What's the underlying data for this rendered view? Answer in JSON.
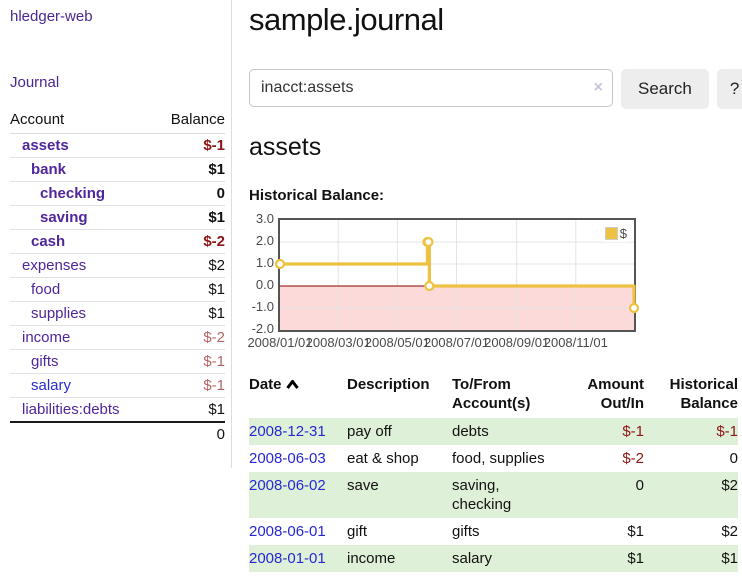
{
  "app_title": "hledger-web",
  "sidebar": {
    "journal_link": "Journal",
    "account_header": "Account",
    "balance_header": "Balance",
    "accounts": [
      {
        "name": "assets",
        "balance": "$-1",
        "depth": 1,
        "bold": true,
        "neg": "neg-strong"
      },
      {
        "name": "bank",
        "balance": "$1",
        "depth": 2,
        "bold": true
      },
      {
        "name": "checking",
        "balance": "0",
        "depth": 3,
        "bold": true
      },
      {
        "name": "saving",
        "balance": "$1",
        "depth": 3,
        "bold": true
      },
      {
        "name": "cash",
        "balance": "$-2",
        "depth": 2,
        "bold": true,
        "neg": "neg-strong"
      },
      {
        "name": "expenses",
        "balance": "$2",
        "depth": 1
      },
      {
        "name": "food",
        "balance": "$1",
        "depth": 2
      },
      {
        "name": "supplies",
        "balance": "$1",
        "depth": 2
      },
      {
        "name": "income",
        "balance": "$-2",
        "depth": 1,
        "neg": "neg-soft"
      },
      {
        "name": "gifts",
        "balance": "$-1",
        "depth": 2,
        "neg": "neg-soft"
      },
      {
        "name": "salary",
        "balance": "$-1",
        "depth": 2,
        "neg": "neg-soft",
        "blue": true
      },
      {
        "name": "liabilities:debts",
        "balance": "$1",
        "depth": 1
      }
    ],
    "total": "0"
  },
  "main": {
    "title": "sample.journal",
    "search": {
      "value": "inacct:assets",
      "clear_icon": "×",
      "search_button": "Search",
      "help_button": "?"
    },
    "account_title": "assets",
    "chart_label": "Historical Balance:"
  },
  "register": {
    "columns": [
      "Date",
      "Description",
      "To/From Account(s)",
      "Amount Out/In",
      "Historical Balance"
    ],
    "sorted_by": "Date ascending",
    "rows": [
      {
        "date": "2008-12-31",
        "description": "pay off",
        "accounts": "debts",
        "amount": "$-1",
        "amount_negative": true,
        "balance": "$-1",
        "balance_negative": true,
        "shaded": true
      },
      {
        "date": "2008-06-03",
        "description": "eat & shop",
        "accounts": "food, supplies",
        "amount": "$-2",
        "amount_negative": true,
        "balance": "0",
        "balance_negative": false,
        "shaded": false
      },
      {
        "date": "2008-06-02",
        "description": "save",
        "accounts": "saving, checking",
        "amount": "0",
        "amount_negative": false,
        "balance": "$2",
        "balance_negative": false,
        "shaded": true
      },
      {
        "date": "2008-06-01",
        "description": "gift",
        "accounts": "gifts",
        "amount": "$1",
        "amount_negative": false,
        "balance": "$2",
        "balance_negative": false,
        "shaded": false
      },
      {
        "date": "2008-01-01",
        "description": "income",
        "accounts": "salary",
        "amount": "$1",
        "amount_negative": false,
        "balance": "$1",
        "balance_negative": false,
        "shaded": true
      }
    ]
  },
  "chart_data": {
    "type": "line",
    "step": true,
    "title": "Historical Balance of assets",
    "series": [
      {
        "name": "$",
        "color": "#edc240",
        "points": [
          {
            "date": "2008-01-01",
            "day": 0,
            "value": 1
          },
          {
            "date": "2008-06-01",
            "day": 152,
            "value": 2
          },
          {
            "date": "2008-06-02",
            "day": 153,
            "value": 2
          },
          {
            "date": "2008-06-03",
            "day": 154,
            "value": 0
          },
          {
            "date": "2008-12-31",
            "day": 365,
            "value": -1
          }
        ]
      }
    ],
    "ylim": [
      -2,
      3
    ],
    "yticks": [
      "3.0",
      "2.0",
      "1.0",
      "0.0",
      "-1.0",
      "-2.0"
    ],
    "ytick_values": [
      3,
      2,
      1,
      0,
      -1,
      -2
    ],
    "x_domain_days": [
      0,
      365
    ],
    "xticks": [
      {
        "day": 0,
        "label": "2008/01/01"
      },
      {
        "day": 60,
        "label": "2008/03/01"
      },
      {
        "day": 121,
        "label": "2008/05/01"
      },
      {
        "day": 182,
        "label": "2008/07/01"
      },
      {
        "day": 244,
        "label": "2008/09/01"
      },
      {
        "day": 305,
        "label": "2008/11/01"
      }
    ],
    "legend": {
      "label": "$",
      "position": "top-right"
    },
    "negative_region_color": "#fcdada",
    "zero_line_color": "#8b0000",
    "grid": true
  },
  "colors": {
    "link_purple": "#4f269b",
    "link_blue": "#2b2bd6",
    "date_link_blue": "#2727d4",
    "negative_strong": "#8e1515",
    "negative_soft": "#b56565",
    "row_shade_green": "#dff0d8",
    "accent_gold": "#edc240",
    "chart_border_gray": "#545454"
  }
}
